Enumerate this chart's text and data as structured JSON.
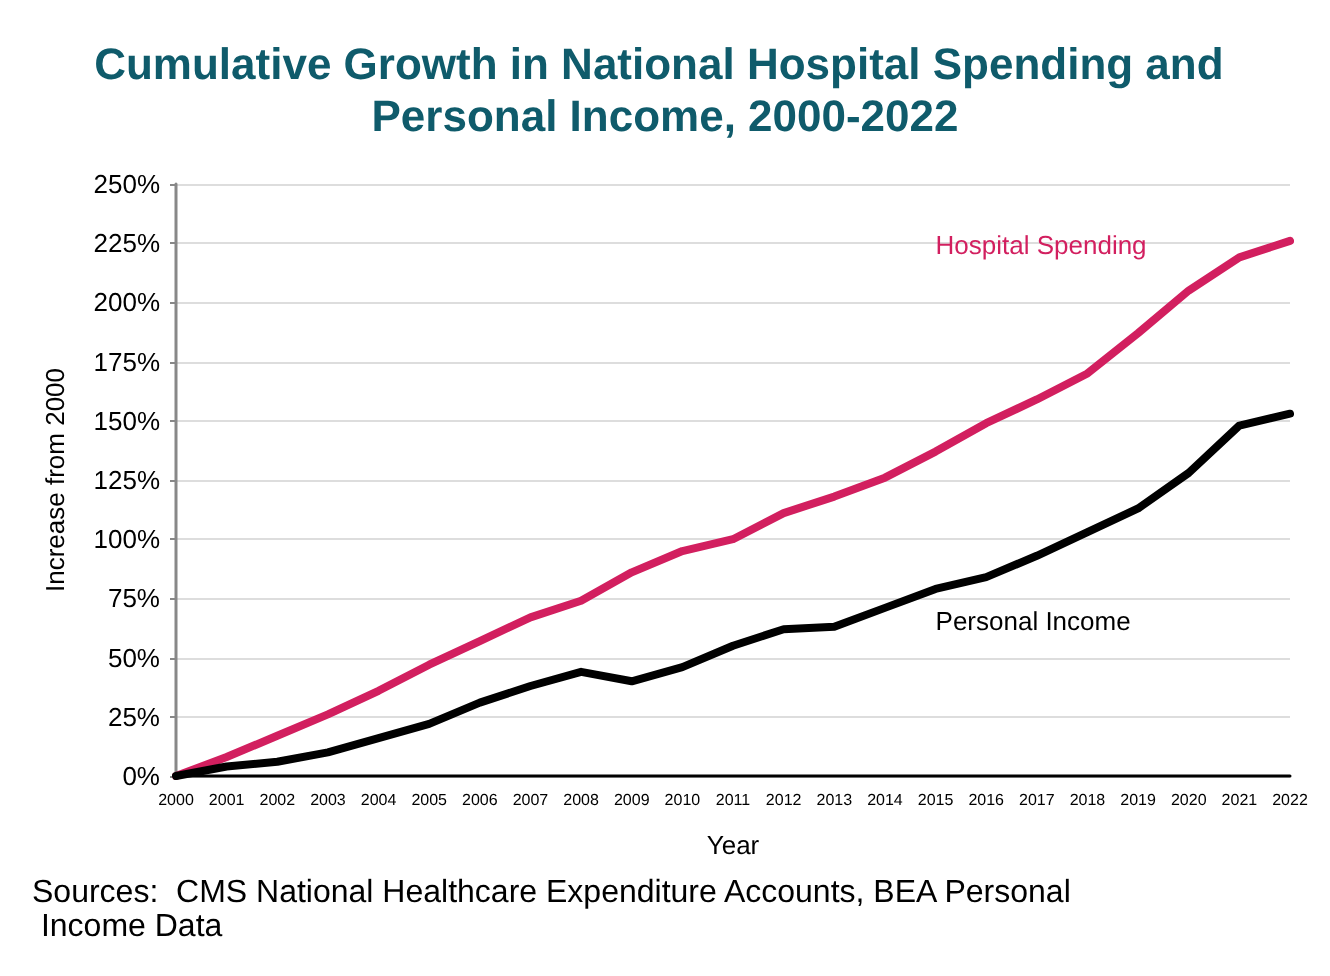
{
  "chart_data": {
    "type": "line",
    "title": "Cumulative Growth in National Hospital Spending and Personal Income, 2000-2022",
    "xlabel": "Year",
    "ylabel": "Increase from 2000",
    "categories": [
      "2000",
      "2001",
      "2002",
      "2003",
      "2004",
      "2005",
      "2006",
      "2007",
      "2008",
      "2009",
      "2010",
      "2011",
      "2012",
      "2013",
      "2014",
      "2015",
      "2016",
      "2017",
      "2018",
      "2019",
      "2020",
      "2021",
      "2022"
    ],
    "series": [
      {
        "name": "Hospital Spending",
        "color": "#d21f5f",
        "values": [
          0,
          8,
          17,
          26,
          36,
          47,
          57,
          67,
          74,
          86,
          95,
          100,
          111,
          118,
          126,
          137,
          149,
          159,
          170,
          187,
          205,
          219,
          226
        ]
      },
      {
        "name": "Personal Income",
        "color": "#000000",
        "values": [
          0,
          4,
          6,
          10,
          16,
          22,
          31,
          38,
          44,
          40,
          46,
          55,
          62,
          63,
          71,
          79,
          84,
          93,
          103,
          113,
          128,
          148,
          153
        ]
      }
    ],
    "ylim": [
      0,
      250
    ],
    "yticks": [
      {
        "value": 0,
        "label": "0%"
      },
      {
        "value": 25,
        "label": "25%"
      },
      {
        "value": 50,
        "label": "50%"
      },
      {
        "value": 75,
        "label": "75%"
      },
      {
        "value": 100,
        "label": "100%"
      },
      {
        "value": 125,
        "label": "125%"
      },
      {
        "value": 150,
        "label": "150%"
      },
      {
        "value": 175,
        "label": "175%"
      },
      {
        "value": 200,
        "label": "200%"
      },
      {
        "value": 225,
        "label": "225%"
      },
      {
        "value": 250,
        "label": "250%"
      }
    ],
    "grid": "y",
    "legend": false,
    "marker": "none",
    "line_style": "solid",
    "annotations": [
      "Sources:  CMS National Healthcare Expenditure Accounts, BEA Personal Income Data"
    ]
  }
}
